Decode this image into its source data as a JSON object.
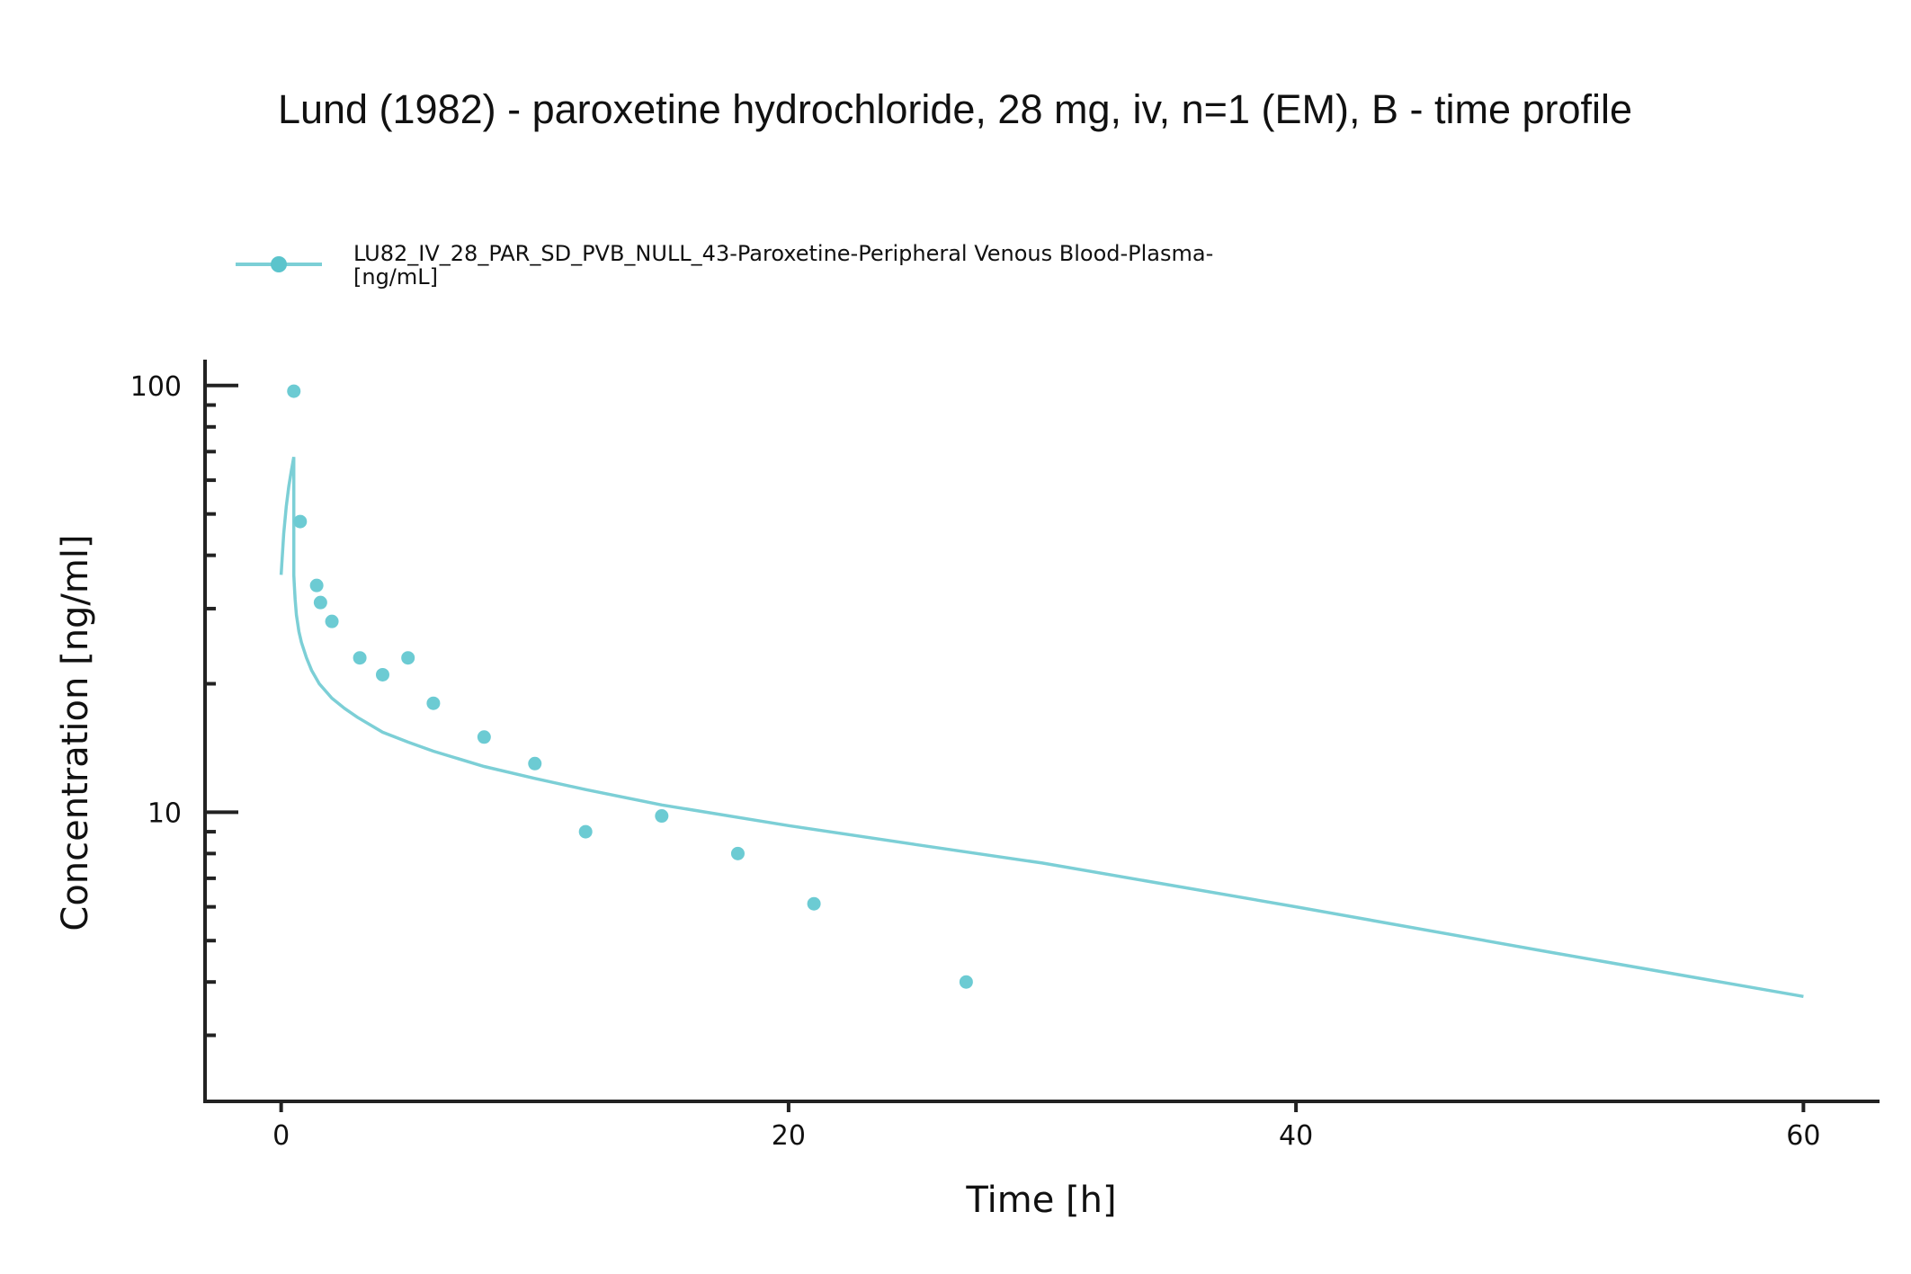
{
  "chart_data": {
    "type": "line",
    "title": "Lund (1982) - paroxetine hydrochloride, 28 mg, iv, n=1 (EM), B - time profile",
    "xlabel": "Time [h]",
    "ylabel": "Concentration [ng/ml]",
    "xlim": [
      -3,
      63
    ],
    "ylim": [
      2.1,
      115
    ],
    "y_scale": "log",
    "grid": false,
    "legend_position": "top-left",
    "x_ticks": [
      0,
      20,
      40,
      60
    ],
    "y_ticks_major": [
      10,
      100
    ],
    "y_ticks_minor": [
      3,
      4,
      5,
      6,
      7,
      8,
      9,
      20,
      30,
      40,
      50,
      60,
      70,
      80,
      90
    ],
    "color": "#7ccfd6",
    "series": [
      {
        "name": "LU82_IV_28_PAR_SD_PVB_NULL_43-Paroxetine-Peripheral Venous Blood-Plasma-[ng/mL]",
        "legend_lines": [
          "LU82_IV_28_PAR_SD_PVB_NULL_43-Paroxetine-Peripheral Venous Blood-Plasma-",
          "[ng/mL]"
        ],
        "kind": "simulation",
        "x": [
          0,
          0.1,
          0.2,
          0.3,
          0.4,
          0.5,
          0.5,
          0.52,
          0.55,
          0.6,
          0.7,
          0.8,
          1.0,
          1.2,
          1.5,
          2.0,
          2.5,
          3.0,
          4.0,
          5.0,
          6.0,
          8.0,
          10.0,
          12.0,
          15.0,
          20.0,
          25.0,
          30.0,
          40.0,
          50.0,
          60.0
        ],
        "y": [
          36,
          45,
          52,
          58,
          63,
          68,
          36,
          34,
          31.5,
          29,
          26.5,
          25,
          23,
          21.5,
          20,
          18.5,
          17.5,
          16.7,
          15.4,
          14.6,
          13.9,
          12.8,
          12.0,
          11.3,
          10.4,
          9.3,
          8.4,
          7.6,
          6.0,
          4.7,
          3.7
        ]
      },
      {
        "name": "LU82_IV_28_PAR_SD_PVB_NULL_43-Paroxetine-Peripheral Venous Blood-Plasma-[ng/mL]",
        "kind": "observed",
        "x": [
          0.5,
          0.75,
          1.4,
          1.55,
          2.0,
          3.1,
          4.0,
          5.0,
          6.0,
          8.0,
          10.0,
          12.0,
          15.0,
          18.0,
          21.0,
          27.0
        ],
        "y": [
          97,
          48,
          34,
          31,
          28,
          23,
          21,
          23,
          18,
          15,
          13,
          9,
          9.8,
          8,
          6.1,
          4
        ]
      }
    ]
  }
}
